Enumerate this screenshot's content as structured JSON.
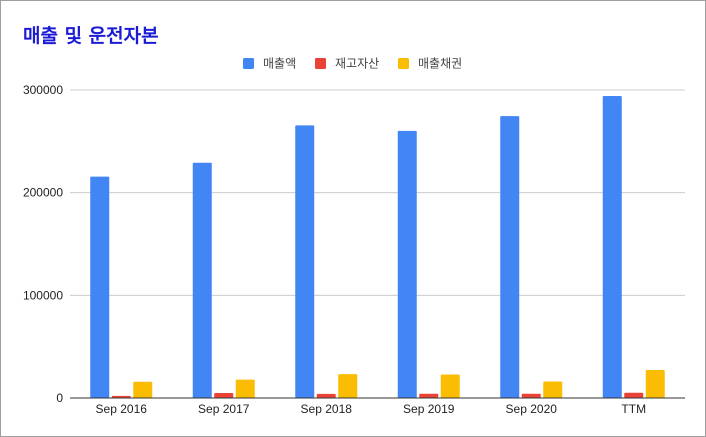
{
  "chart_data": {
    "type": "bar",
    "title": "매출 및 운전자본",
    "categories": [
      "Sep 2016",
      "Sep 2017",
      "Sep 2018",
      "Sep 2019",
      "Sep 2020",
      "TTM"
    ],
    "series": [
      {
        "name": "매출액",
        "color": "#4285f4",
        "values": [
          215600,
          229200,
          265600,
          260200,
          274500,
          294100
        ]
      },
      {
        "name": "재고자산",
        "color": "#ea4335",
        "values": [
          2100,
          4900,
          4000,
          4100,
          4100,
          5100
        ]
      },
      {
        "name": "매출채권",
        "color": "#fbbc04",
        "values": [
          15800,
          17900,
          23200,
          22900,
          16100,
          27300
        ]
      }
    ],
    "ylim": [
      0,
      300000
    ],
    "yticks": [
      "0",
      "100000",
      "200000",
      "300000"
    ],
    "grid": true,
    "legend_position": "top-center"
  }
}
